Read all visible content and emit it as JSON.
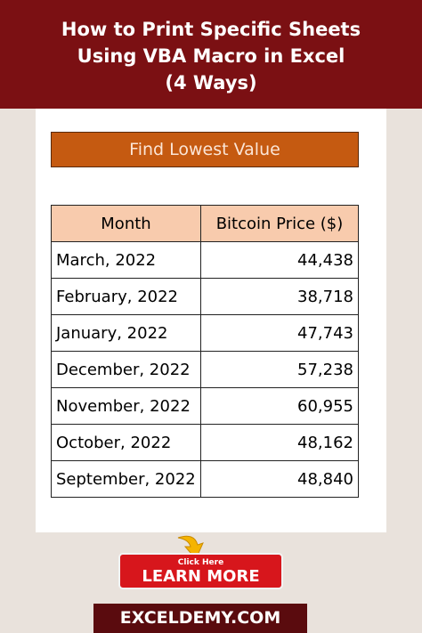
{
  "header": {
    "title_lines": [
      "How to Print Specific Sheets",
      "Using VBA Macro in Excel",
      "(4 Ways)"
    ]
  },
  "panel": {
    "heading": "Find Lowest Value"
  },
  "table": {
    "columns": [
      "Month",
      "Bitcoin Price ($)"
    ],
    "rows": [
      [
        "March, 2022",
        "44,438"
      ],
      [
        "February, 2022",
        "38,718"
      ],
      [
        "January, 2022",
        "47,743"
      ],
      [
        "December, 2022",
        "57,238"
      ],
      [
        "November, 2022",
        "60,955"
      ],
      [
        "October, 2022",
        "48,162"
      ],
      [
        "September, 2022",
        "48,840"
      ]
    ]
  },
  "button": {
    "small": "Click Here",
    "large": "LEARN MORE"
  },
  "footer": {
    "brand": "EXCELDEMY.COM"
  }
}
